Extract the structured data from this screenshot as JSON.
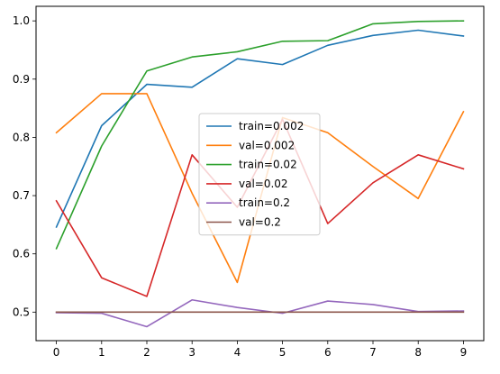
{
  "chart_data": {
    "type": "line",
    "title": "",
    "xlabel": "",
    "ylabel": "",
    "x": [
      0,
      1,
      2,
      3,
      4,
      5,
      6,
      7,
      8,
      9
    ],
    "xticks": [
      0,
      1,
      2,
      3,
      4,
      5,
      6,
      7,
      8,
      9
    ],
    "yticks": [
      0.5,
      0.6,
      0.7,
      0.8,
      0.9,
      1.0
    ],
    "xlim": [
      -0.45,
      9.45
    ],
    "ylim": [
      0.451,
      1.025
    ],
    "grid": false,
    "legend_position": "center",
    "series": [
      {
        "name": "train=0.002",
        "color": "#1f77b4",
        "values": [
          0.646,
          0.82,
          0.891,
          0.886,
          0.935,
          0.925,
          0.958,
          0.975,
          0.984,
          0.974
        ]
      },
      {
        "name": "val=0.002",
        "color": "#ff7f0e",
        "values": [
          0.808,
          0.875,
          0.875,
          0.704,
          0.551,
          0.834,
          0.808,
          0.75,
          0.695,
          0.844
        ]
      },
      {
        "name": "train=0.02",
        "color": "#2ca02c",
        "values": [
          0.609,
          0.785,
          0.914,
          0.938,
          0.947,
          0.965,
          0.966,
          0.995,
          0.999,
          1.0
        ]
      },
      {
        "name": "val=0.02",
        "color": "#d62728",
        "values": [
          0.691,
          0.559,
          0.527,
          0.77,
          0.68,
          0.831,
          0.652,
          0.722,
          0.77,
          0.746
        ]
      },
      {
        "name": "train=0.2",
        "color": "#9467bd",
        "values": [
          0.499,
          0.498,
          0.475,
          0.521,
          0.508,
          0.498,
          0.519,
          0.513,
          0.501,
          0.502
        ]
      },
      {
        "name": "val=0.2",
        "color": "#8c564b",
        "values": [
          0.5,
          0.5,
          0.5,
          0.5,
          0.5,
          0.5,
          0.5,
          0.5,
          0.5,
          0.5
        ]
      }
    ]
  }
}
